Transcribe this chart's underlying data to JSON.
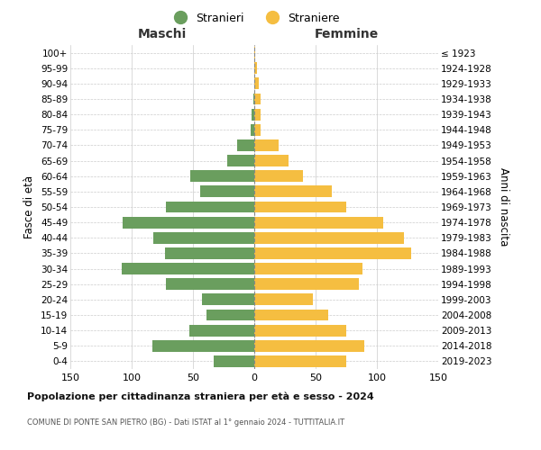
{
  "age_groups": [
    "0-4",
    "5-9",
    "10-14",
    "15-19",
    "20-24",
    "25-29",
    "30-34",
    "35-39",
    "40-44",
    "45-49",
    "50-54",
    "55-59",
    "60-64",
    "65-69",
    "70-74",
    "75-79",
    "80-84",
    "85-89",
    "90-94",
    "95-99",
    "100+"
  ],
  "birth_years": [
    "2019-2023",
    "2014-2018",
    "2009-2013",
    "2004-2008",
    "1999-2003",
    "1994-1998",
    "1989-1993",
    "1984-1988",
    "1979-1983",
    "1974-1978",
    "1969-1973",
    "1964-1968",
    "1959-1963",
    "1954-1958",
    "1949-1953",
    "1944-1948",
    "1939-1943",
    "1934-1938",
    "1929-1933",
    "1924-1928",
    "≤ 1923"
  ],
  "males": [
    33,
    83,
    53,
    39,
    43,
    72,
    108,
    73,
    82,
    107,
    72,
    44,
    52,
    22,
    14,
    3,
    2,
    1,
    0,
    0,
    0
  ],
  "females": [
    75,
    90,
    75,
    60,
    48,
    85,
    88,
    128,
    122,
    105,
    75,
    63,
    40,
    28,
    20,
    5,
    5,
    5,
    4,
    2,
    1
  ],
  "male_color": "#6a9e5e",
  "female_color": "#f5be41",
  "grid_color": "#cccccc",
  "title": "Popolazione per cittadinanza straniera per età e sesso - 2024",
  "subtitle": "COMUNE DI PONTE SAN PIETRO (BG) - Dati ISTAT al 1° gennaio 2024 - TUTTITALIA.IT",
  "xlabel_left": "Maschi",
  "xlabel_right": "Femmine",
  "ylabel_left": "Fasce di età",
  "ylabel_right": "Anni di nascita",
  "legend_male": "Stranieri",
  "legend_female": "Straniere",
  "xlim": 150,
  "background_color": "#ffffff",
  "bar_height": 0.75
}
